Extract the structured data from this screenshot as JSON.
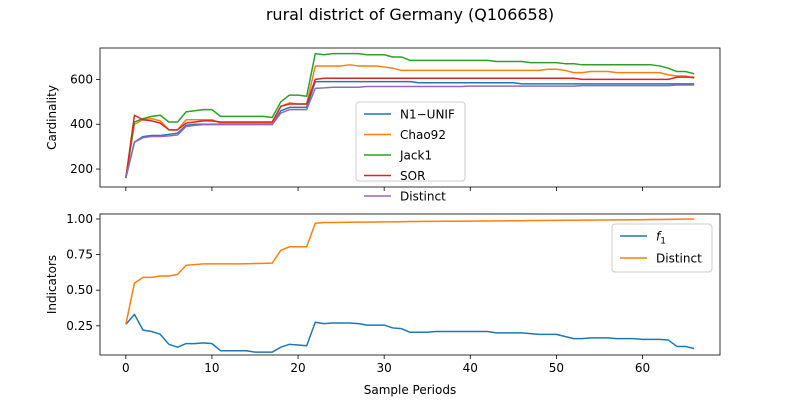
{
  "figure": {
    "title": "rural district of Germany (Q106658)"
  },
  "chart_data": [
    {
      "type": "line",
      "ylabel": "Cardinality",
      "xlabel": "",
      "xlim": [
        -3,
        69
      ],
      "ylim": [
        120,
        740
      ],
      "xticks": [
        0,
        10,
        20,
        30,
        40,
        50,
        60
      ],
      "xtick_labels_visible": false,
      "yticks": [
        200,
        400,
        600
      ],
      "ytick_labels": [
        "200",
        "400",
        "600"
      ],
      "legend": "center",
      "grid": false,
      "series": [
        {
          "name": "N1−UNIF",
          "color": "#1f77b4",
          "values": [
            160,
            320,
            345,
            350,
            350,
            355,
            360,
            395,
            400,
            400,
            400,
            400,
            400,
            400,
            400,
            400,
            400,
            400,
            460,
            475,
            475,
            475,
            590,
            590,
            590,
            590,
            590,
            590,
            590,
            590,
            590,
            590,
            590,
            590,
            585,
            585,
            585,
            585,
            585,
            585,
            585,
            585,
            585,
            585,
            585,
            585,
            580,
            580,
            580,
            580,
            580,
            580,
            580,
            580,
            580,
            580,
            580,
            580,
            580,
            580,
            580,
            580,
            580,
            580,
            580,
            580,
            580
          ]
        },
        {
          "name": "Chao92",
          "color": "#ff7f0e",
          "values": [
            160,
            400,
            420,
            425,
            415,
            375,
            375,
            420,
            420,
            420,
            420,
            405,
            405,
            405,
            405,
            405,
            405,
            405,
            480,
            495,
            490,
            490,
            660,
            660,
            660,
            660,
            665,
            660,
            660,
            660,
            655,
            650,
            640,
            640,
            640,
            640,
            640,
            640,
            640,
            640,
            640,
            640,
            640,
            640,
            640,
            640,
            640,
            640,
            640,
            645,
            645,
            640,
            630,
            630,
            635,
            635,
            635,
            630,
            630,
            630,
            630,
            630,
            630,
            620,
            615,
            615,
            605
          ]
        },
        {
          "name": "Jack1",
          "color": "#2ca02c",
          "values": [
            160,
            410,
            425,
            435,
            440,
            410,
            410,
            455,
            460,
            465,
            465,
            435,
            435,
            435,
            435,
            435,
            435,
            430,
            500,
            530,
            530,
            525,
            715,
            710,
            715,
            715,
            715,
            715,
            710,
            710,
            710,
            700,
            700,
            685,
            685,
            685,
            685,
            685,
            685,
            685,
            685,
            685,
            685,
            680,
            680,
            680,
            680,
            675,
            675,
            675,
            675,
            670,
            670,
            665,
            665,
            665,
            665,
            665,
            665,
            665,
            665,
            665,
            660,
            650,
            635,
            635,
            625
          ]
        },
        {
          "name": "SOR",
          "color": "#d62728",
          "values": [
            160,
            440,
            420,
            415,
            405,
            375,
            375,
            405,
            410,
            415,
            415,
            410,
            410,
            410,
            410,
            410,
            410,
            410,
            480,
            490,
            490,
            490,
            600,
            605,
            605,
            605,
            605,
            605,
            605,
            605,
            605,
            605,
            605,
            605,
            605,
            605,
            605,
            605,
            605,
            605,
            605,
            605,
            605,
            605,
            605,
            605,
            605,
            605,
            605,
            605,
            605,
            605,
            605,
            600,
            600,
            600,
            600,
            600,
            600,
            600,
            600,
            600,
            600,
            600,
            610,
            610,
            610
          ]
        },
        {
          "name": "Distinct",
          "color": "#9467bd",
          "values": [
            160,
            320,
            340,
            345,
            345,
            348,
            352,
            390,
            395,
            398,
            398,
            398,
            398,
            398,
            398,
            398,
            398,
            398,
            450,
            465,
            465,
            465,
            560,
            562,
            565,
            565,
            565,
            565,
            568,
            568,
            568,
            568,
            568,
            568,
            568,
            568,
            568,
            568,
            568,
            568,
            570,
            570,
            570,
            570,
            570,
            570,
            570,
            570,
            570,
            570,
            570,
            570,
            570,
            572,
            572,
            572,
            572,
            572,
            572,
            572,
            572,
            572,
            572,
            572,
            575,
            575,
            575
          ]
        }
      ]
    },
    {
      "type": "line",
      "ylabel": "Indicators",
      "xlabel": "Sample Periods",
      "xlim": [
        -3,
        69
      ],
      "ylim": [
        0.045,
        1.035
      ],
      "xticks": [
        0,
        10,
        20,
        30,
        40,
        50,
        60
      ],
      "xtick_labels": [
        "0",
        "10",
        "20",
        "30",
        "40",
        "50",
        "60"
      ],
      "yticks": [
        0.25,
        0.5,
        0.75,
        1.0
      ],
      "ytick_labels": [
        "0.25",
        "0.50",
        "0.75",
        "1.00"
      ],
      "legend": "upper-right",
      "grid": false,
      "series": [
        {
          "name": "f₁",
          "label_main": "f",
          "label_sub": "1",
          "color": "#1f77b4",
          "values": [
            0.26,
            0.33,
            0.22,
            0.21,
            0.19,
            0.12,
            0.1,
            0.125,
            0.125,
            0.13,
            0.125,
            0.075,
            0.075,
            0.075,
            0.075,
            0.065,
            0.065,
            0.065,
            0.1,
            0.12,
            0.115,
            0.11,
            0.275,
            0.265,
            0.27,
            0.27,
            0.27,
            0.265,
            0.255,
            0.255,
            0.255,
            0.235,
            0.23,
            0.205,
            0.205,
            0.205,
            0.21,
            0.21,
            0.21,
            0.21,
            0.21,
            0.21,
            0.21,
            0.2,
            0.2,
            0.2,
            0.2,
            0.195,
            0.19,
            0.19,
            0.19,
            0.175,
            0.16,
            0.16,
            0.165,
            0.165,
            0.165,
            0.16,
            0.16,
            0.16,
            0.155,
            0.155,
            0.155,
            0.15,
            0.105,
            0.105,
            0.09
          ]
        },
        {
          "name": "Distinct",
          "color": "#ff7f0e",
          "values": [
            0.26,
            0.55,
            0.59,
            0.59,
            0.6,
            0.6,
            0.61,
            0.675,
            0.68,
            0.685,
            0.685,
            0.685,
            0.685,
            0.685,
            0.686,
            0.687,
            0.688,
            0.69,
            0.78,
            0.805,
            0.805,
            0.805,
            0.97,
            0.975,
            0.975,
            0.976,
            0.977,
            0.978,
            0.978,
            0.979,
            0.98,
            0.98,
            0.981,
            0.982,
            0.982,
            0.983,
            0.983,
            0.984,
            0.984,
            0.985,
            0.985,
            0.986,
            0.986,
            0.987,
            0.987,
            0.988,
            0.988,
            0.989,
            0.989,
            0.99,
            0.99,
            0.991,
            0.991,
            0.992,
            0.992,
            0.993,
            0.993,
            0.994,
            0.994,
            0.995,
            0.995,
            0.996,
            0.996,
            0.997,
            0.998,
            0.999,
            1.0
          ]
        }
      ]
    }
  ]
}
